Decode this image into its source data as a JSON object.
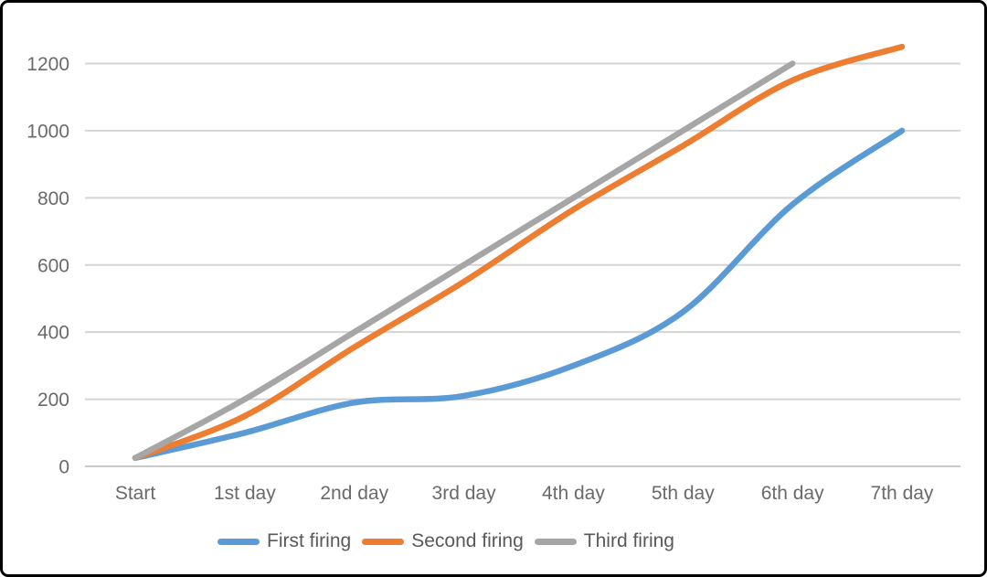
{
  "chart_data": {
    "type": "line",
    "title": "",
    "xlabel": "",
    "ylabel": "",
    "categories": [
      "Start",
      "1st day",
      "2nd day",
      "3rd day",
      "4th day",
      "5th day",
      "6th day",
      "7th day"
    ],
    "series": [
      {
        "name": "First firing",
        "color": "#5B9BD5",
        "values": [
          25,
          100,
          190,
          210,
          300,
          460,
          780,
          1000
        ]
      },
      {
        "name": "Second firing",
        "color": "#ED7D31",
        "values": [
          25,
          150,
          355,
          550,
          765,
          955,
          1150,
          1250
        ]
      },
      {
        "name": "Third firing",
        "color": "#A6A6A6",
        "values": [
          25,
          200,
          400,
          600,
          800,
          1000,
          1200,
          null
        ]
      }
    ],
    "y_ticks": [
      0,
      200,
      400,
      600,
      800,
      1000,
      1200
    ],
    "ylim": [
      0,
      1300
    ],
    "grid": "horizontal",
    "line_style": "smooth",
    "legend_position": "bottom"
  },
  "colors": {
    "background": "#ffffff",
    "frame_border": "#000000",
    "gridline": "#d4d4d4",
    "axis_line": "#c9c9c9",
    "axis_text": "#6a6a6a",
    "legend_text": "#595959"
  }
}
